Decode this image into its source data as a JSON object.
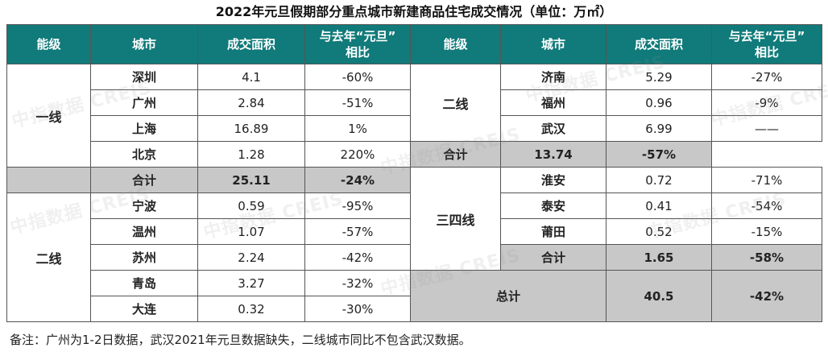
{
  "title": "2022年元旦假期部分重点城市新建商品住宅成交情况（单位：万㎡）",
  "headers": {
    "tier": "能级",
    "city": "城市",
    "area": "成交面积",
    "yoy_line1": "与去年“元旦”",
    "yoy_line2": "相比"
  },
  "left": {
    "tier1": "一线",
    "tier1_rows": [
      {
        "city": "深圳",
        "area": "4.1",
        "yoy": "-60%"
      },
      {
        "city": "广州",
        "area": "2.84",
        "yoy": "-51%"
      },
      {
        "city": "上海",
        "area": "16.89",
        "yoy": "1%"
      },
      {
        "city": "北京",
        "area": "1.28",
        "yoy": "220%"
      }
    ],
    "tier1_subtotal": {
      "label": "合计",
      "area": "25.11",
      "yoy": "-24%"
    },
    "tier2": "二线",
    "tier2_rows": [
      {
        "city": "宁波",
        "area": "0.59",
        "yoy": "-95%"
      },
      {
        "city": "温州",
        "area": "1.07",
        "yoy": "-57%"
      },
      {
        "city": "苏州",
        "area": "2.24",
        "yoy": "-42%"
      },
      {
        "city": "青岛",
        "area": "3.27",
        "yoy": "-32%"
      },
      {
        "city": "大连",
        "area": "0.32",
        "yoy": "-30%"
      }
    ]
  },
  "right": {
    "tier2": "二线",
    "tier2_rows": [
      {
        "city": "济南",
        "area": "5.29",
        "yoy": "-27%"
      },
      {
        "city": "福州",
        "area": "0.96",
        "yoy": "-9%"
      },
      {
        "city": "武汉",
        "area": "6.99",
        "yoy": "——"
      }
    ],
    "tier2_subtotal": {
      "label": "合计",
      "area": "13.74",
      "yoy": "-57%"
    },
    "tier3": "三四线",
    "tier3_rows": [
      {
        "city": "淮安",
        "area": "0.72",
        "yoy": "-71%"
      },
      {
        "city": "泰安",
        "area": "0.41",
        "yoy": "-54%"
      },
      {
        "city": "莆田",
        "area": "0.52",
        "yoy": "-15%"
      }
    ],
    "tier3_subtotal": {
      "label": "合计",
      "area": "1.65",
      "yoy": "-58%"
    },
    "total": {
      "label": "总计",
      "area": "40.5",
      "yoy": "-42%"
    }
  },
  "note": "备注：广州为1-2日数据，武汉2021年元旦数据缺失，二线城市同比不包含武汉数据。",
  "watermark": "中指数据 CREIS",
  "colors": {
    "header_bg": "#117a7a",
    "header_text": "#ffffff",
    "subtotal_bg": "#c8c8c8"
  }
}
